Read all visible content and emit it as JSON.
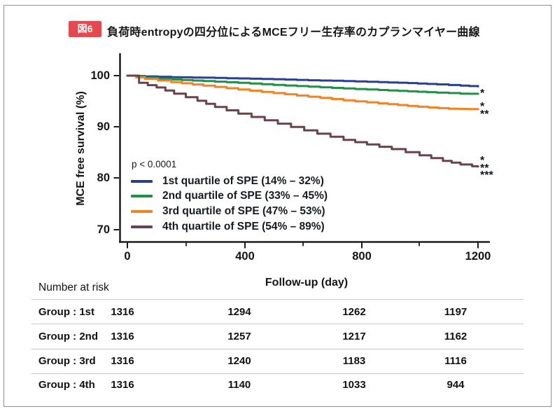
{
  "figure": {
    "badge_label": "図6",
    "badge_color": "#e5494f",
    "title": "負荷時entropyの四分位によるMCEフリー生存率のカプランマイヤー曲線"
  },
  "chart_data": {
    "type": "line",
    "subtype": "kaplan-meier-step-curves",
    "title": "",
    "xlabel": "Follow-up (day)",
    "ylabel": "MCE free survival (%)",
    "xlim": [
      0,
      1260
    ],
    "ylim": [
      67,
      101
    ],
    "grid": false,
    "legend_position": "lower-left-inside",
    "x_tick_labels": [
      "0",
      "400",
      "800",
      "1200"
    ],
    "x_minor_ticks": [
      200,
      600,
      1000
    ],
    "y_tick_labels": [
      "100",
      "90",
      "80",
      "70"
    ],
    "p_value": "p < 0.0001",
    "series": [
      {
        "id": "q1",
        "name": "1st quartile of SPE (14% – 32%)",
        "color": "#2b3e96",
        "points": [
          [
            0,
            100
          ],
          [
            60,
            99.85
          ],
          [
            150,
            99.7
          ],
          [
            260,
            99.6
          ],
          [
            380,
            99.45
          ],
          [
            500,
            99.3
          ],
          [
            620,
            99.1
          ],
          [
            740,
            98.95
          ],
          [
            860,
            98.75
          ],
          [
            960,
            98.55
          ],
          [
            1060,
            98.3
          ],
          [
            1140,
            98.05
          ],
          [
            1200,
            97.9
          ]
        ]
      },
      {
        "id": "q2",
        "name": "2nd quartile of SPE (33% – 45%)",
        "color": "#1e9147",
        "points": [
          [
            0,
            100
          ],
          [
            60,
            99.6
          ],
          [
            150,
            99.25
          ],
          [
            260,
            98.95
          ],
          [
            380,
            98.6
          ],
          [
            500,
            98.2
          ],
          [
            620,
            97.85
          ],
          [
            740,
            97.5
          ],
          [
            860,
            97.2
          ],
          [
            960,
            96.95
          ],
          [
            1060,
            96.7
          ],
          [
            1140,
            96.5
          ],
          [
            1200,
            96.45
          ]
        ]
      },
      {
        "id": "q3",
        "name": "3rd quartile of SPE (47% – 53%)",
        "color": "#f58220",
        "points": [
          [
            0,
            100
          ],
          [
            60,
            99.35
          ],
          [
            150,
            98.75
          ],
          [
            260,
            98.05
          ],
          [
            380,
            97.3
          ],
          [
            500,
            96.6
          ],
          [
            620,
            95.9
          ],
          [
            740,
            95.2
          ],
          [
            860,
            94.6
          ],
          [
            960,
            94.1
          ],
          [
            1030,
            93.8
          ],
          [
            1100,
            93.55
          ],
          [
            1200,
            93.45
          ]
        ]
      },
      {
        "id": "q4",
        "name": "4th quartile of SPE (54% – 89%)",
        "color": "#6a424a",
        "points": [
          [
            0,
            100
          ],
          [
            40,
            98.6
          ],
          [
            100,
            97.7
          ],
          [
            160,
            96.5
          ],
          [
            240,
            95.1
          ],
          [
            300,
            93.9
          ],
          [
            380,
            92.6
          ],
          [
            470,
            91.3
          ],
          [
            560,
            90.0
          ],
          [
            650,
            88.7
          ],
          [
            740,
            87.5
          ],
          [
            820,
            86.6
          ],
          [
            905,
            85.7
          ],
          [
            1000,
            84.5
          ],
          [
            1080,
            83.4
          ],
          [
            1140,
            82.7
          ],
          [
            1180,
            82.35
          ],
          [
            1200,
            82.3
          ]
        ]
      }
    ],
    "significance_marks": [
      {
        "series": "q2",
        "text": "*"
      },
      {
        "series": "q3",
        "text": "*"
      },
      {
        "series": "q3",
        "text": "**"
      },
      {
        "series": "q4",
        "text": "*"
      },
      {
        "series": "q4",
        "text": "**"
      },
      {
        "series": "q4",
        "text": "***"
      }
    ]
  },
  "risk_table": {
    "title": "Number at risk",
    "rows": [
      {
        "label": "Group : 1st",
        "values": [
          "1316",
          "1294",
          "1262",
          "1197"
        ]
      },
      {
        "label": "Group : 2nd",
        "values": [
          "1316",
          "1257",
          "1217",
          "1162"
        ]
      },
      {
        "label": "Group : 3rd",
        "values": [
          "1316",
          "1240",
          "1183",
          "1116"
        ]
      },
      {
        "label": "Group : 4th",
        "values": [
          "1316",
          "1140",
          "1033",
          "944"
        ]
      }
    ]
  }
}
